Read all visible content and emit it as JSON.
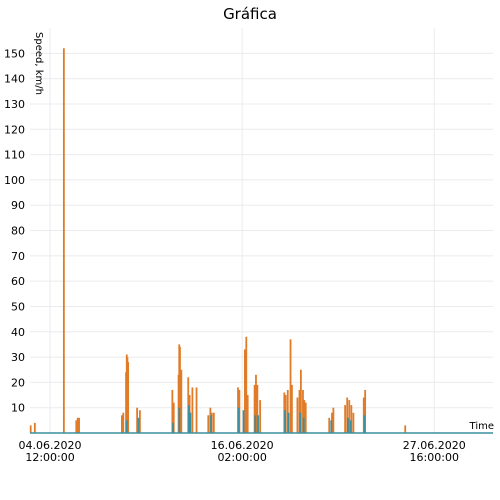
{
  "chart_data": {
    "type": "area",
    "title": "Gráfica",
    "ylabel": "Speed, km/h",
    "xlabel": "Time",
    "ylim": [
      0,
      160
    ],
    "yticks": [
      10,
      20,
      30,
      40,
      50,
      60,
      70,
      80,
      90,
      100,
      110,
      120,
      130,
      140,
      150
    ],
    "xlim": [
      "2020-06-03T07:00",
      "2020-07-01T05:00"
    ],
    "xticks": [
      {
        "value": "2020-06-04T12:00",
        "line1": "04.06.2020",
        "line2": "12:00:00"
      },
      {
        "value": "2020-06-16T02:00",
        "line1": "16.06.2020",
        "line2": "02:00:00"
      },
      {
        "value": "2020-06-27T16:00",
        "line1": "27.06.2020",
        "line2": "16:00:00"
      }
    ],
    "grid": true,
    "series": [
      {
        "color": "#e07b28",
        "spikes": [
          [
            "2020-06-03T08:00",
            3
          ],
          [
            "2020-06-03T14:00",
            4
          ],
          [
            "2020-06-05T08:00",
            152
          ],
          [
            "2020-06-06T02:00",
            5
          ],
          [
            "2020-06-06T04:00",
            6
          ],
          [
            "2020-06-06T06:00",
            6
          ],
          [
            "2020-06-08T20:00",
            7
          ],
          [
            "2020-06-08T22:00",
            8
          ],
          [
            "2020-06-09T02:00",
            24
          ],
          [
            "2020-06-09T03:00",
            31
          ],
          [
            "2020-06-09T04:00",
            30
          ],
          [
            "2020-06-09T05:00",
            28
          ],
          [
            "2020-06-09T18:00",
            10
          ],
          [
            "2020-06-09T22:00",
            9
          ],
          [
            "2020-06-11T21:00",
            17
          ],
          [
            "2020-06-11T23:00",
            12
          ],
          [
            "2020-06-12T06:00",
            23
          ],
          [
            "2020-06-12T07:00",
            35
          ],
          [
            "2020-06-12T08:00",
            34
          ],
          [
            "2020-06-12T10:00",
            25
          ],
          [
            "2020-06-12T20:00",
            22
          ],
          [
            "2020-06-12T22:00",
            15
          ],
          [
            "2020-06-13T02:00",
            18
          ],
          [
            "2020-06-13T08:00",
            18
          ],
          [
            "2020-06-14T01:00",
            7
          ],
          [
            "2020-06-14T04:00",
            10
          ],
          [
            "2020-06-14T06:00",
            8
          ],
          [
            "2020-06-14T09:00",
            8
          ],
          [
            "2020-06-15T20:00",
            18
          ],
          [
            "2020-06-15T22:00",
            17
          ],
          [
            "2020-06-16T06:00",
            33
          ],
          [
            "2020-06-16T08:00",
            38
          ],
          [
            "2020-06-16T10:00",
            15
          ],
          [
            "2020-06-16T20:00",
            19
          ],
          [
            "2020-06-16T22:00",
            23
          ],
          [
            "2020-06-17T00:00",
            19
          ],
          [
            "2020-06-17T04:00",
            13
          ],
          [
            "2020-06-18T15:00",
            16
          ],
          [
            "2020-06-18T17:00",
            15
          ],
          [
            "2020-06-18T20:00",
            17
          ],
          [
            "2020-06-19T00:00",
            37
          ],
          [
            "2020-06-19T02:00",
            19
          ],
          [
            "2020-06-19T10:00",
            14
          ],
          [
            "2020-06-19T13:00",
            17
          ],
          [
            "2020-06-19T15:00",
            25
          ],
          [
            "2020-06-19T18:00",
            17
          ],
          [
            "2020-06-19T20:00",
            13
          ],
          [
            "2020-06-19T22:00",
            12
          ],
          [
            "2020-06-21T08:00",
            6
          ],
          [
            "2020-06-21T12:00",
            8
          ],
          [
            "2020-06-21T14:00",
            10
          ],
          [
            "2020-06-22T07:00",
            11
          ],
          [
            "2020-06-22T10:00",
            14
          ],
          [
            "2020-06-22T13:00",
            13
          ],
          [
            "2020-06-22T16:00",
            11
          ],
          [
            "2020-06-22T19:00",
            8
          ],
          [
            "2020-06-23T10:00",
            14
          ],
          [
            "2020-06-23T12:00",
            17
          ],
          [
            "2020-06-25T22:00",
            3
          ]
        ]
      },
      {
        "color": "#3a8fa0",
        "spikes": [
          [
            "2020-06-09T03:00",
            5
          ],
          [
            "2020-06-09T20:00",
            6
          ],
          [
            "2020-06-11T22:00",
            4
          ],
          [
            "2020-06-12T07:00",
            10
          ],
          [
            "2020-06-12T21:00",
            11
          ],
          [
            "2020-06-12T23:00",
            8
          ],
          [
            "2020-06-14T05:00",
            7
          ],
          [
            "2020-06-15T21:00",
            10
          ],
          [
            "2020-06-16T04:00",
            9
          ],
          [
            "2020-06-16T21:00",
            7
          ],
          [
            "2020-06-17T01:00",
            7
          ],
          [
            "2020-06-18T16:00",
            9
          ],
          [
            "2020-06-18T21:00",
            8
          ],
          [
            "2020-06-19T14:00",
            8
          ],
          [
            "2020-06-19T19:00",
            6
          ],
          [
            "2020-06-21T11:00",
            5
          ],
          [
            "2020-06-22T11:00",
            6
          ],
          [
            "2020-06-22T15:00",
            5
          ],
          [
            "2020-06-23T11:00",
            7
          ]
        ]
      }
    ]
  }
}
